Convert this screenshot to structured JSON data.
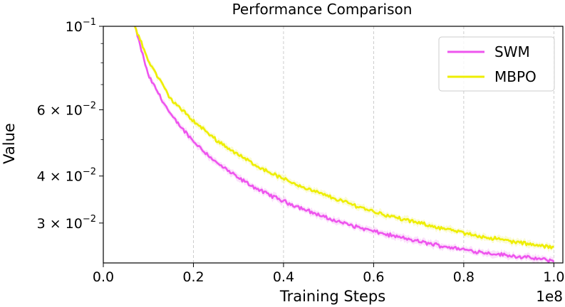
{
  "chart_data": {
    "type": "line",
    "title": "Performance Comparison",
    "xlabel": "Training Steps",
    "ylabel": "Value",
    "x_offset_label": "1e8",
    "xlim": [
      0.0,
      1.02
    ],
    "ylim": [
      0.0235,
      0.1
    ],
    "y_scale": "log",
    "x_scale_factor": 100000000,
    "grid": "vertical dashed",
    "legend_position": "upper right",
    "x_ticks": [
      {
        "value": 0.0,
        "label": "0.0"
      },
      {
        "value": 0.2,
        "label": "0.2"
      },
      {
        "value": 0.4,
        "label": "0.4"
      },
      {
        "value": 0.6,
        "label": "0.6"
      },
      {
        "value": 0.8,
        "label": "0.8"
      },
      {
        "value": 1.0,
        "label": "1.0"
      }
    ],
    "y_ticks": [
      {
        "value": 0.1,
        "mantissa": "10",
        "exponent": "−1"
      },
      {
        "value": 0.06,
        "mantissa": "6 × 10",
        "exponent": "−2"
      },
      {
        "value": 0.04,
        "mantissa": "4 × 10",
        "exponent": "−2"
      },
      {
        "value": 0.03,
        "mantissa": "3 × 10",
        "exponent": "−2"
      }
    ],
    "series": [
      {
        "name": "SWM",
        "color": "#ee55ee",
        "band_color": "#f7c8f7",
        "x": [
          0.07,
          0.1,
          0.15,
          0.2,
          0.25,
          0.3,
          0.35,
          0.4,
          0.45,
          0.5,
          0.55,
          0.6,
          0.65,
          0.7,
          0.75,
          0.8,
          0.85,
          0.9,
          0.95,
          1.0
        ],
        "y": [
          0.1,
          0.074,
          0.058,
          0.0495,
          0.0435,
          0.0395,
          0.0365,
          0.0343,
          0.0325,
          0.0308,
          0.0296,
          0.0285,
          0.0276,
          0.0268,
          0.0261,
          0.0255,
          0.025,
          0.0246,
          0.0242,
          0.0238
        ]
      },
      {
        "name": "MBPO",
        "color": "#eeee00",
        "band_color": "#f8f8b0",
        "x": [
          0.07,
          0.1,
          0.15,
          0.2,
          0.25,
          0.3,
          0.35,
          0.4,
          0.45,
          0.5,
          0.55,
          0.6,
          0.65,
          0.7,
          0.75,
          0.8,
          0.85,
          0.9,
          0.95,
          1.0
        ],
        "y": [
          0.1,
          0.081,
          0.064,
          0.056,
          0.05,
          0.0455,
          0.042,
          0.0393,
          0.0371,
          0.0353,
          0.0337,
          0.0322,
          0.031,
          0.03,
          0.0291,
          0.0282,
          0.0275,
          0.0269,
          0.0263,
          0.0258
        ]
      }
    ]
  }
}
